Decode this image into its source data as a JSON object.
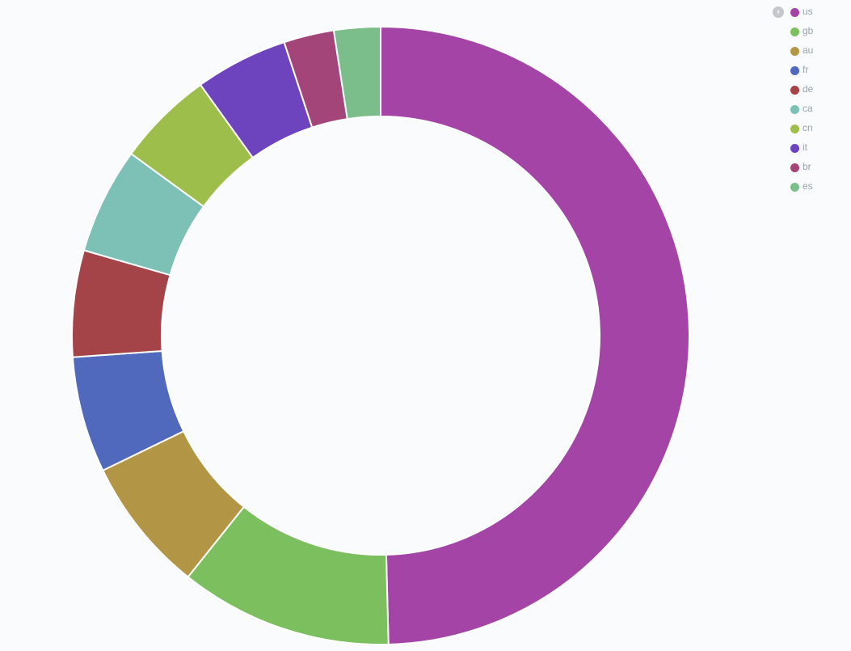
{
  "chart_data": {
    "type": "pie",
    "donut": true,
    "legend_position": "top-right",
    "slices": [
      {
        "label": "us",
        "value": 49.0,
        "color": "#a444a6"
      },
      {
        "label": "gb",
        "value": 11.0,
        "color": "#7bbf5e"
      },
      {
        "label": "au",
        "value": 7.0,
        "color": "#b39645"
      },
      {
        "label": "fr",
        "value": 6.0,
        "color": "#5069bd"
      },
      {
        "label": "de",
        "value": 5.5,
        "color": "#a44448"
      },
      {
        "label": "ca",
        "value": 5.5,
        "color": "#7cc0b6"
      },
      {
        "label": "cn",
        "value": 5.0,
        "color": "#9ebe4b"
      },
      {
        "label": "it",
        "value": 4.8,
        "color": "#6d44bd"
      },
      {
        "label": "br",
        "value": 2.6,
        "color": "#a44579"
      },
      {
        "label": "es",
        "value": 2.4,
        "color": "#7cbe8b"
      }
    ]
  },
  "legend": {
    "toggle_icon": "chevron-right-icon"
  }
}
